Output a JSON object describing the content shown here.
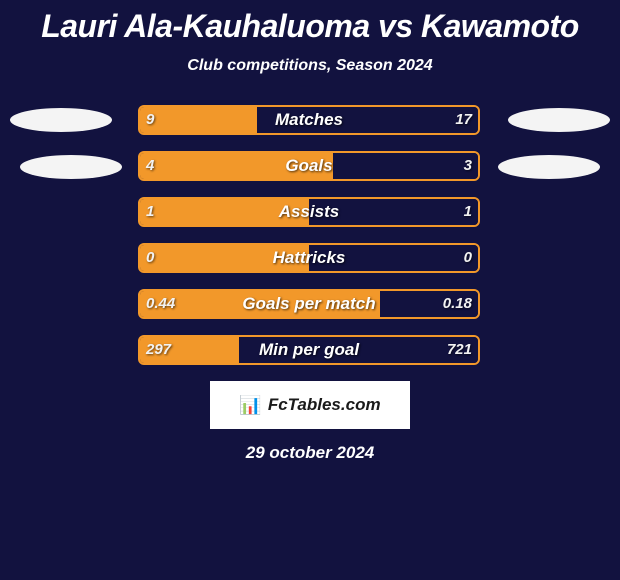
{
  "colors": {
    "bg": "#12123f",
    "title": "#ffffff",
    "subtitle": "#ffffff",
    "label_text": "#ffffff",
    "value_text": "#f2f2f2",
    "bar_border": "#f2982a",
    "bar_left_fill": "#f2982a",
    "bar_right_fill": "#12123f",
    "oval_fill": "#f4f4f4",
    "brand_bg": "#ffffff",
    "brand_text": "#1a1a1a",
    "date_text": "#ffffff"
  },
  "title": "Lauri Ala-Kauhaluoma vs Kawamoto",
  "subtitle": "Club competitions, Season 2024",
  "bar_track_width": 342,
  "stats": [
    {
      "label": "Matches",
      "left_val": "9",
      "right_val": "17",
      "left_pct": 34.6
    },
    {
      "label": "Goals",
      "left_val": "4",
      "right_val": "3",
      "left_pct": 57.1
    },
    {
      "label": "Assists",
      "left_val": "1",
      "right_val": "1",
      "left_pct": 50.0
    },
    {
      "label": "Hattricks",
      "left_val": "0",
      "right_val": "0",
      "left_pct": 50.0
    },
    {
      "label": "Goals per match",
      "left_val": "0.44",
      "right_val": "0.18",
      "left_pct": 71.0
    },
    {
      "label": "Min per goal",
      "left_val": "297",
      "right_val": "721",
      "left_pct": 29.2
    }
  ],
  "brand": "FcTables.com",
  "date": "29 october 2024"
}
